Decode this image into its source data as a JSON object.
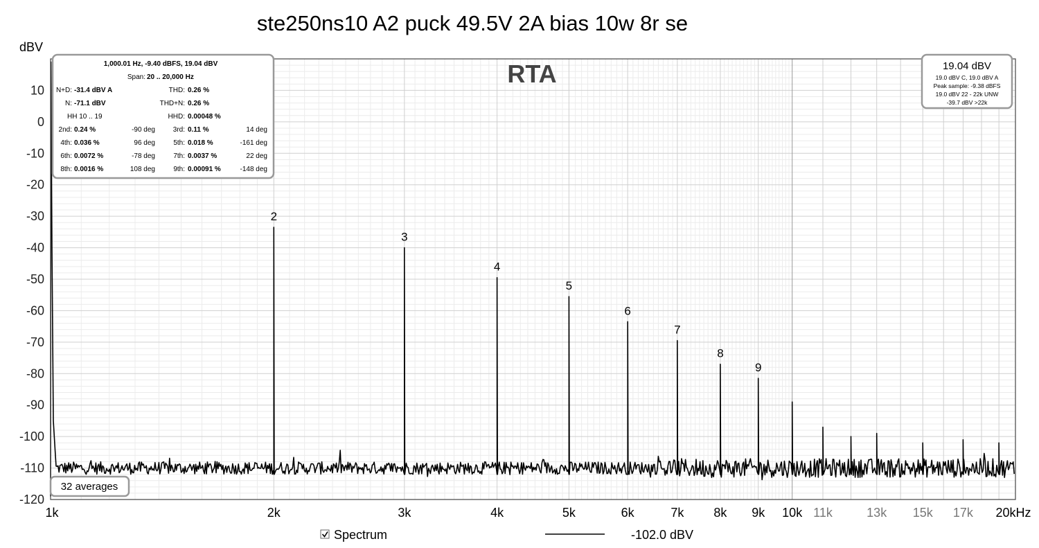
{
  "chart_data": {
    "type": "line",
    "title": "ste250ns10 A2 puck 49.5V 2A bias 10w 8r se",
    "plot_label": "RTA",
    "ylabel": "dBV",
    "ylim": [
      -120,
      20
    ],
    "xlim": [
      1000,
      21000
    ],
    "xscale": "log",
    "grid": true,
    "yticks": [
      10,
      0,
      -10,
      -20,
      -30,
      -40,
      -50,
      -60,
      -70,
      -80,
      -90,
      -100,
      -110,
      -120
    ],
    "xticks": [
      {
        "value": 1000,
        "label": "1k",
        "major": true
      },
      {
        "value": 2000,
        "label": "2k",
        "major": true
      },
      {
        "value": 3000,
        "label": "3k",
        "major": true
      },
      {
        "value": 4000,
        "label": "4k",
        "major": true
      },
      {
        "value": 5000,
        "label": "5k",
        "major": true
      },
      {
        "value": 6000,
        "label": "6k",
        "major": true
      },
      {
        "value": 7000,
        "label": "7k",
        "major": true
      },
      {
        "value": 8000,
        "label": "8k",
        "major": true
      },
      {
        "value": 9000,
        "label": "9k",
        "major": true
      },
      {
        "value": 10000,
        "label": "10k",
        "major": true
      },
      {
        "value": 11000,
        "label": "11k",
        "major": false
      },
      {
        "value": 13000,
        "label": "13k",
        "major": false
      },
      {
        "value": 15000,
        "label": "15k",
        "major": false
      },
      {
        "value": 17000,
        "label": "17k",
        "major": false
      },
      {
        "value": 20000,
        "label": "20kHz",
        "major": true
      }
    ],
    "noise_floor_dbv": -110,
    "peaks": [
      {
        "freq": 1000,
        "dbv": 19.04,
        "label": ""
      },
      {
        "freq": 2000,
        "dbv": -33.5,
        "label": "2"
      },
      {
        "freq": 3000,
        "dbv": -40,
        "label": "3"
      },
      {
        "freq": 4000,
        "dbv": -49.5,
        "label": "4"
      },
      {
        "freq": 5000,
        "dbv": -55.5,
        "label": "5"
      },
      {
        "freq": 6000,
        "dbv": -63.5,
        "label": "6"
      },
      {
        "freq": 7000,
        "dbv": -69.5,
        "label": "7"
      },
      {
        "freq": 8000,
        "dbv": -77,
        "label": "8"
      },
      {
        "freq": 9000,
        "dbv": -81.5,
        "label": "9"
      },
      {
        "freq": 10000,
        "dbv": -89,
        "label": ""
      },
      {
        "freq": 11000,
        "dbv": -97,
        "label": ""
      },
      {
        "freq": 12000,
        "dbv": -100,
        "label": ""
      },
      {
        "freq": 13000,
        "dbv": -99,
        "label": ""
      },
      {
        "freq": 15000,
        "dbv": -102,
        "label": ""
      },
      {
        "freq": 17000,
        "dbv": -101,
        "label": ""
      },
      {
        "freq": 19000,
        "dbv": -102,
        "label": ""
      }
    ],
    "series": [
      {
        "name": "Spectrum",
        "color": "#000000"
      }
    ],
    "legend": {
      "position": "bottom",
      "checkbox_label": "Spectrum",
      "checked": true,
      "value": "-102.0 dBV"
    }
  },
  "info_box": {
    "header": "1,000.01 Hz, -9.40 dBFS, 19.04 dBV",
    "span_label": "Span:",
    "span_value": "20 .. 20,000 Hz",
    "rows": [
      [
        {
          "label": "N+D:",
          "value": "-31.4 dBV A"
        },
        {
          "label": "THD:",
          "value": "0.26 %"
        }
      ],
      [
        {
          "label": "N:",
          "value": "-71.1 dBV"
        },
        {
          "label": "THD+N:",
          "value": "0.26 %"
        }
      ],
      [
        {
          "label": "HH 10 .. 19",
          "value": ""
        },
        {
          "label": "HHD:",
          "value": "0.00048 %"
        }
      ]
    ],
    "harmonics": [
      [
        {
          "label": "2nd:",
          "value": "0.24 %",
          "phase": "-90 deg"
        },
        {
          "label": "3rd:",
          "value": "0.11 %",
          "phase": "14 deg"
        }
      ],
      [
        {
          "label": "4th:",
          "value": "0.036 %",
          "phase": "96 deg"
        },
        {
          "label": "5th:",
          "value": "0.018 %",
          "phase": "-161 deg"
        }
      ],
      [
        {
          "label": "6th:",
          "value": "0.0072 %",
          "phase": "-78 deg"
        },
        {
          "label": "7th:",
          "value": "0.0037 %",
          "phase": "22 deg"
        }
      ],
      [
        {
          "label": "8th:",
          "value": "0.0016 %",
          "phase": "108 deg"
        },
        {
          "label": "9th:",
          "value": "0.00091 %",
          "phase": "-148 deg"
        }
      ]
    ]
  },
  "level_box": {
    "main": "19.04 dBV",
    "lines": [
      "19.0 dBV C, 19.0 dBV A",
      "Peak sample: -9.38 dBFS",
      "19.0 dBV 22 - 22k UNW",
      "-39.7 dBV >22k"
    ]
  },
  "averages_label": "32 averages"
}
